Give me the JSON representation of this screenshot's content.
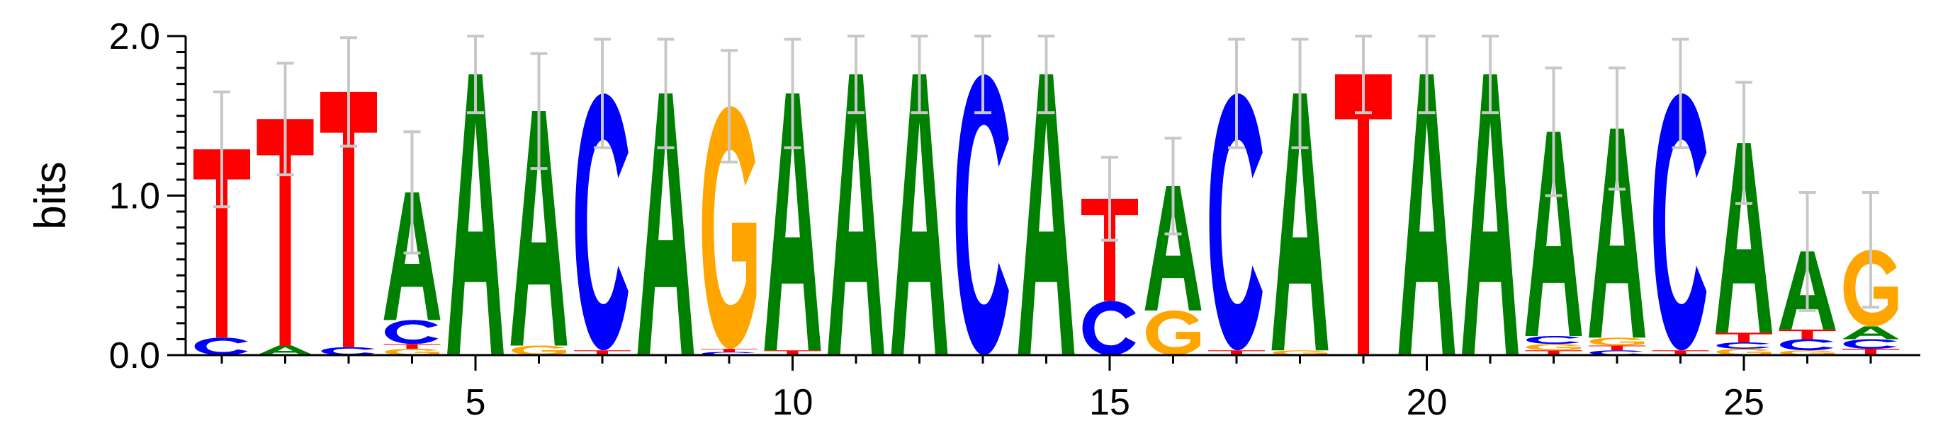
{
  "chart_data": {
    "type": "sequence-logo",
    "ylabel": "bits",
    "ylim": [
      0,
      2.0
    ],
    "y_ticks": [
      0.0,
      1.0,
      2.0
    ],
    "y_tick_labels": [
      "0.0",
      "1.0",
      "2.0"
    ],
    "x_ticks": [
      5,
      10,
      15,
      20,
      25
    ],
    "x_tick_labels": [
      "5",
      "10",
      "15",
      "20",
      "25"
    ],
    "num_positions": 27,
    "colors": {
      "A": "#008000",
      "C": "#0000ff",
      "G": "#ffa500",
      "T": "#ff0000"
    },
    "positions": [
      {
        "pos": 1,
        "error": 0.36,
        "stack": [
          [
            "C",
            0.11
          ],
          [
            "T",
            1.18
          ]
        ]
      },
      {
        "pos": 2,
        "error": 0.35,
        "stack": [
          [
            "A",
            0.06
          ],
          [
            "T",
            1.42
          ]
        ]
      },
      {
        "pos": 3,
        "error": 0.34,
        "stack": [
          [
            "C",
            0.05
          ],
          [
            "T",
            1.6
          ]
        ]
      },
      {
        "pos": 4,
        "error": 0.38,
        "stack": [
          [
            "G",
            0.04
          ],
          [
            "T",
            0.03
          ],
          [
            "C",
            0.15
          ],
          [
            "A",
            0.8
          ]
        ]
      },
      {
        "pos": 5,
        "error": 0.24,
        "stack": [
          [
            "A",
            1.76
          ]
        ]
      },
      {
        "pos": 6,
        "error": 0.36,
        "stack": [
          [
            "G",
            0.06
          ],
          [
            "A",
            1.47
          ]
        ]
      },
      {
        "pos": 7,
        "error": 0.34,
        "stack": [
          [
            "T",
            0.03
          ],
          [
            "C",
            1.61
          ]
        ]
      },
      {
        "pos": 8,
        "error": 0.34,
        "stack": [
          [
            "A",
            1.64
          ]
        ]
      },
      {
        "pos": 9,
        "error": 0.35,
        "stack": [
          [
            "C",
            0.02
          ],
          [
            "T",
            0.02
          ],
          [
            "G",
            1.52
          ]
        ]
      },
      {
        "pos": 10,
        "error": 0.34,
        "stack": [
          [
            "T",
            0.03
          ],
          [
            "A",
            1.61
          ]
        ]
      },
      {
        "pos": 11,
        "error": 0.24,
        "stack": [
          [
            "A",
            1.76
          ]
        ]
      },
      {
        "pos": 12,
        "error": 0.24,
        "stack": [
          [
            "A",
            1.76
          ]
        ]
      },
      {
        "pos": 13,
        "error": 0.24,
        "stack": [
          [
            "C",
            1.76
          ]
        ]
      },
      {
        "pos": 14,
        "error": 0.24,
        "stack": [
          [
            "A",
            1.76
          ]
        ]
      },
      {
        "pos": 15,
        "error": 0.26,
        "stack": [
          [
            "C",
            0.34
          ],
          [
            "T",
            0.64
          ]
        ]
      },
      {
        "pos": 16,
        "error": 0.3,
        "stack": [
          [
            "G",
            0.28
          ],
          [
            "A",
            0.78
          ]
        ]
      },
      {
        "pos": 17,
        "error": 0.34,
        "stack": [
          [
            "T",
            0.03
          ],
          [
            "C",
            1.61
          ]
        ]
      },
      {
        "pos": 18,
        "error": 0.34,
        "stack": [
          [
            "G",
            0.03
          ],
          [
            "A",
            1.61
          ]
        ]
      },
      {
        "pos": 19,
        "error": 0.24,
        "stack": [
          [
            "T",
            1.76
          ]
        ]
      },
      {
        "pos": 20,
        "error": 0.24,
        "stack": [
          [
            "A",
            1.76
          ]
        ]
      },
      {
        "pos": 21,
        "error": 0.24,
        "stack": [
          [
            "A",
            1.76
          ]
        ]
      },
      {
        "pos": 22,
        "error": 0.4,
        "stack": [
          [
            "T",
            0.03
          ],
          [
            "G",
            0.04
          ],
          [
            "C",
            0.05
          ],
          [
            "A",
            1.28
          ]
        ]
      },
      {
        "pos": 23,
        "error": 0.38,
        "stack": [
          [
            "C",
            0.03
          ],
          [
            "T",
            0.03
          ],
          [
            "G",
            0.05
          ],
          [
            "A",
            1.31
          ]
        ]
      },
      {
        "pos": 24,
        "error": 0.34,
        "stack": [
          [
            "T",
            0.03
          ],
          [
            "C",
            1.61
          ]
        ]
      },
      {
        "pos": 25,
        "error": 0.38,
        "stack": [
          [
            "G",
            0.04
          ],
          [
            "C",
            0.04
          ],
          [
            "T",
            0.06
          ],
          [
            "A",
            1.19
          ]
        ]
      },
      {
        "pos": 26,
        "error": 0.37,
        "stack": [
          [
            "G",
            0.03
          ],
          [
            "C",
            0.07
          ],
          [
            "T",
            0.06
          ],
          [
            "A",
            0.49
          ]
        ]
      },
      {
        "pos": 27,
        "error": 0.36,
        "stack": [
          [
            "T",
            0.04
          ],
          [
            "C",
            0.06
          ],
          [
            "A",
            0.08
          ],
          [
            "G",
            0.48
          ]
        ]
      }
    ]
  }
}
